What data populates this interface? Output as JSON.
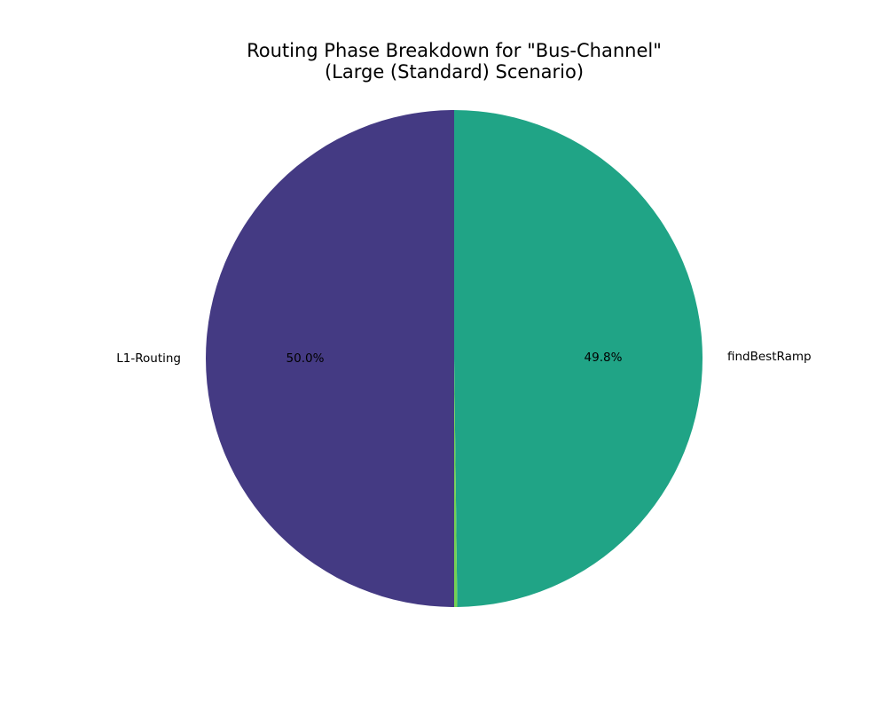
{
  "chart_data": {
    "type": "pie",
    "title_lines": [
      "Routing Phase Breakdown for \"Bus-Channel\"",
      "(Large (Standard) Scenario)"
    ],
    "slices": [
      {
        "label": "findBestRamp",
        "pct_label": "49.8%",
        "value": 49.8,
        "color": "#20a486"
      },
      {
        "label": "",
        "pct_label": "",
        "value": 0.2,
        "color": "#75d054"
      },
      {
        "label": "L1-Routing",
        "pct_label": "50.0%",
        "value": 50.0,
        "color": "#443a83"
      }
    ],
    "start_angle_deg": 90,
    "direction": "clockwise"
  }
}
